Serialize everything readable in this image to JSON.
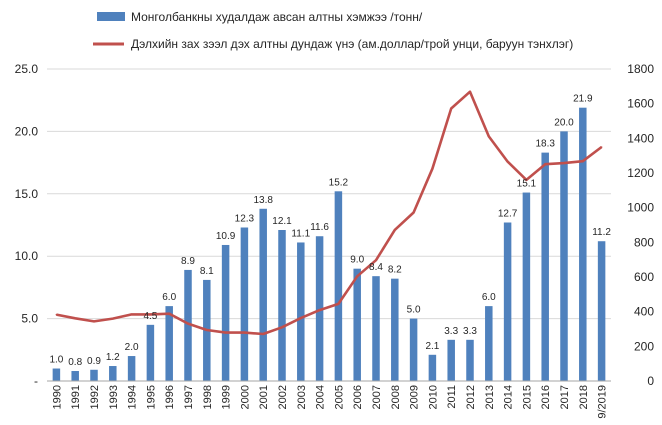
{
  "chart_data": {
    "type": "bar+line",
    "categories": [
      "1990",
      "1991",
      "1992",
      "1993",
      "1994",
      "1995",
      "1996",
      "1997",
      "1998",
      "1999",
      "2000",
      "2001",
      "2002",
      "2003",
      "2004",
      "2005",
      "2006",
      "2007",
      "2008",
      "2009",
      "2010",
      "2011",
      "2012",
      "2013",
      "2014",
      "2015",
      "2016",
      "2017",
      "2018",
      "9/2019"
    ],
    "series": [
      {
        "name": "Монголбанкны худалдаж авсан алтны хэмжээ /тонн/",
        "type": "bar",
        "axis": "left",
        "color": "#4f81bd",
        "values": [
          1.0,
          0.8,
          0.9,
          1.2,
          2.0,
          4.5,
          6.0,
          8.9,
          8.1,
          10.9,
          12.3,
          13.8,
          12.1,
          11.1,
          11.6,
          15.2,
          9.0,
          8.4,
          8.2,
          5.0,
          2.1,
          3.3,
          3.3,
          6.0,
          12.7,
          15.1,
          18.3,
          20.0,
          21.9,
          11.2
        ],
        "labels": [
          "1.0",
          "0.8",
          "0.9",
          "1.2",
          "2.0",
          "4.5",
          "6.0",
          "8.9",
          "8.1",
          "10.9",
          "12.3",
          "13.8",
          "12.1",
          "11.1",
          "11.6",
          "15.2",
          "9.0",
          "8.4",
          "8.2",
          "5.0",
          "2.1",
          "3.3",
          "3.3",
          "6.0",
          "12.7",
          "15.1",
          "18.3",
          "20.0",
          "21.9",
          "11.2"
        ]
      },
      {
        "name": "Дэлхийн зах зээл дэх алтны дундаж үнэ (ам.доллар/трой унци, баруун тэнхлэг)",
        "type": "line",
        "axis": "right",
        "color": "#c0504d",
        "values": [
          383,
          362,
          344,
          360,
          384,
          384,
          388,
          331,
          294,
          279,
          279,
          271,
          310,
          363,
          409,
          445,
          604,
          697,
          872,
          972,
          1225,
          1572,
          1669,
          1411,
          1266,
          1160,
          1251,
          1257,
          1268,
          1350
        ]
      }
    ],
    "left_axis": {
      "min": 0,
      "max": 25,
      "ticks": [
        "-",
        "5.0",
        "10.0",
        "15.0",
        "20.0",
        "25.0"
      ]
    },
    "right_axis": {
      "min": 0,
      "max": 1800,
      "ticks": [
        "0",
        "200",
        "400",
        "600",
        "800",
        "1000",
        "1200",
        "1400",
        "1600",
        "1800"
      ]
    },
    "grid": "horizontal",
    "legend_position": "top"
  }
}
